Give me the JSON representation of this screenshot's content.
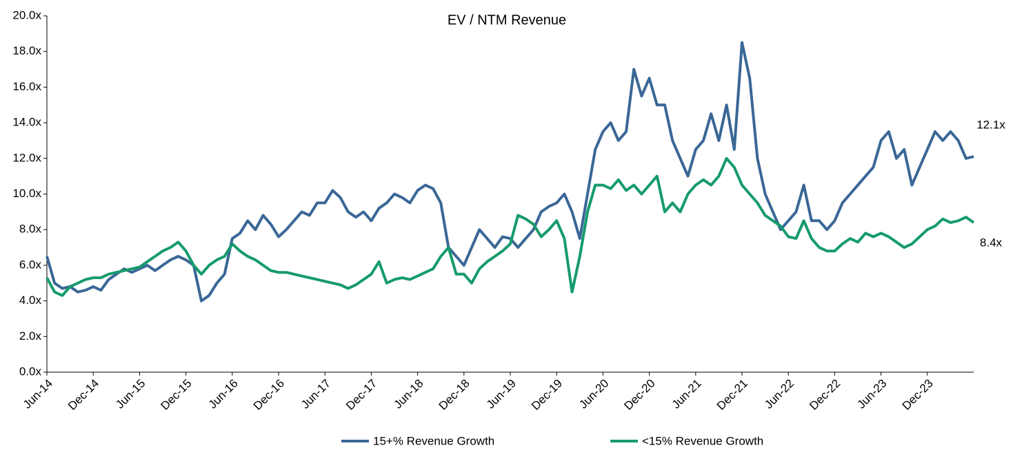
{
  "chart_data": {
    "type": "line",
    "title": "EV / NTM Revenue",
    "categories": [
      "Jun-14",
      null,
      null,
      null,
      null,
      null,
      "Dec-14",
      null,
      null,
      null,
      null,
      null,
      "Jun-15",
      null,
      null,
      null,
      null,
      null,
      "Dec-15",
      null,
      null,
      null,
      null,
      null,
      "Jun-16",
      null,
      null,
      null,
      null,
      null,
      "Dec-16",
      null,
      null,
      null,
      null,
      null,
      "Jun-17",
      null,
      null,
      null,
      null,
      null,
      "Dec-17",
      null,
      null,
      null,
      null,
      null,
      "Jun-18",
      null,
      null,
      null,
      null,
      null,
      "Dec-18",
      null,
      null,
      null,
      null,
      null,
      "Jun-19",
      null,
      null,
      null,
      null,
      null,
      "Dec-19",
      null,
      null,
      null,
      null,
      null,
      "Jun-20",
      null,
      null,
      null,
      null,
      null,
      "Dec-20",
      null,
      null,
      null,
      null,
      null,
      "Jun-21",
      null,
      null,
      null,
      null,
      null,
      "Dec-21",
      null,
      null,
      null,
      null,
      null,
      "Jun-22",
      null,
      null,
      null,
      null,
      null,
      "Dec-22",
      null,
      null,
      null,
      null,
      null,
      "Jun-23",
      null,
      null,
      null,
      null,
      null,
      "Dec-23",
      null,
      null,
      null,
      null,
      null,
      null
    ],
    "series": [
      {
        "name": "15+% Revenue Growth",
        "color": "#3a6796",
        "values": [
          6.5,
          5.0,
          4.7,
          4.8,
          4.5,
          4.6,
          4.8,
          4.6,
          5.2,
          5.5,
          5.8,
          5.6,
          5.8,
          6.0,
          5.7,
          6.0,
          6.3,
          6.5,
          6.3,
          6.0,
          4.0,
          4.3,
          5.0,
          5.5,
          7.5,
          7.8,
          8.5,
          8.0,
          8.8,
          8.3,
          7.6,
          8.0,
          8.5,
          9.0,
          8.8,
          9.5,
          9.5,
          10.2,
          9.8,
          9.0,
          8.7,
          9.0,
          8.5,
          9.2,
          9.5,
          10.0,
          9.8,
          9.5,
          10.2,
          10.5,
          10.3,
          9.5,
          7.0,
          6.5,
          6.0,
          7.0,
          8.0,
          7.5,
          7.0,
          7.6,
          7.5,
          7.0,
          7.5,
          8.0,
          9.0,
          9.3,
          9.5,
          10.0,
          9.0,
          7.5,
          10.0,
          12.5,
          13.5,
          14.0,
          13.0,
          13.5,
          17.0,
          15.5,
          16.5,
          15.0,
          15.0,
          13.0,
          12.0,
          11.0,
          12.5,
          13.0,
          14.5,
          13.0,
          15.0,
          12.5,
          18.5,
          16.5,
          12.0,
          10.0,
          9.0,
          8.0,
          8.5,
          9.0,
          10.5,
          8.5,
          8.5,
          8.0,
          8.5,
          9.5,
          10.0,
          10.5,
          11.0,
          11.5,
          13.0,
          13.5,
          12.0,
          12.5,
          10.5,
          11.5,
          12.5,
          13.5,
          13.0,
          13.5,
          13.0,
          12.0,
          12.1
        ]
      },
      {
        "name": "<15% Revenue Growth",
        "color": "#169b6b",
        "values": [
          5.3,
          4.5,
          4.3,
          4.8,
          5.0,
          5.2,
          5.3,
          5.3,
          5.5,
          5.6,
          5.7,
          5.8,
          5.9,
          6.2,
          6.5,
          6.8,
          7.0,
          7.3,
          6.8,
          6.0,
          5.5,
          6.0,
          6.3,
          6.5,
          7.2,
          6.8,
          6.5,
          6.3,
          6.0,
          5.7,
          5.6,
          5.6,
          5.5,
          5.4,
          5.3,
          5.2,
          5.1,
          5.0,
          4.9,
          4.7,
          4.9,
          5.2,
          5.5,
          6.2,
          5.0,
          5.2,
          5.3,
          5.2,
          5.4,
          5.6,
          5.8,
          6.5,
          7.0,
          5.5,
          5.5,
          5.0,
          5.8,
          6.2,
          6.5,
          6.8,
          7.2,
          8.8,
          8.6,
          8.3,
          7.6,
          8.0,
          8.5,
          7.5,
          4.5,
          6.5,
          9.0,
          10.5,
          10.5,
          10.3,
          10.8,
          10.2,
          10.5,
          10.0,
          10.5,
          11.0,
          9.0,
          9.5,
          9.0,
          10.0,
          10.5,
          10.8,
          10.5,
          11.0,
          12.0,
          11.5,
          10.5,
          10.0,
          9.5,
          8.8,
          8.5,
          8.2,
          7.6,
          7.5,
          8.5,
          7.5,
          7.0,
          6.8,
          6.8,
          7.2,
          7.5,
          7.3,
          7.8,
          7.6,
          7.8,
          7.6,
          7.3,
          7.0,
          7.2,
          7.6,
          8.0,
          8.2,
          8.6,
          8.4,
          8.5,
          8.7,
          8.4
        ]
      }
    ],
    "annotations": [
      "12.1x",
      "8.4x"
    ],
    "ylim": [
      0,
      20
    ],
    "yticks": [
      {
        "value": 0,
        "label": "0.0x"
      },
      {
        "value": 2,
        "label": "2.0x"
      },
      {
        "value": 4,
        "label": "4.0x"
      },
      {
        "value": 6,
        "label": "6.0x"
      },
      {
        "value": 8,
        "label": "8.0x"
      },
      {
        "value": 10,
        "label": "10.0x"
      },
      {
        "value": 12,
        "label": "12.0x"
      },
      {
        "value": 14,
        "label": "14.0x"
      },
      {
        "value": 16,
        "label": "16.0x"
      },
      {
        "value": 18,
        "label": "18.0x"
      },
      {
        "value": 20,
        "label": "20.0x"
      }
    ],
    "grid": false,
    "legend": "bottom"
  }
}
